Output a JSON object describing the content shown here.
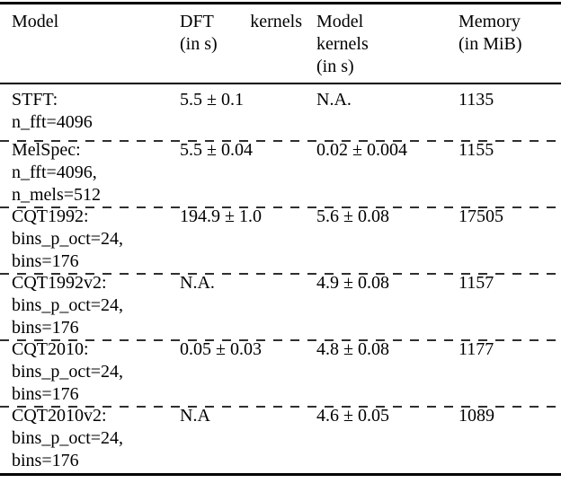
{
  "table": {
    "colors": {
      "text": "#000000",
      "rule": "#000000",
      "dash": "#2f2f2f",
      "background": "#ffffff"
    },
    "headers": [
      {
        "id": "model",
        "lines": [
          "Model"
        ],
        "justify_first": false
      },
      {
        "id": "dft-kernels",
        "lines": [
          "DFT kernels",
          "(in s)"
        ],
        "justify_first": true
      },
      {
        "id": "model-kernels",
        "lines": [
          "Model",
          "kernels",
          "(in s)"
        ],
        "justify_first": false
      },
      {
        "id": "memory",
        "lines": [
          "Memory",
          "(in MiB)"
        ],
        "justify_first": false
      }
    ],
    "rows": [
      {
        "id": "stft",
        "model_lines": [
          "STFT:",
          "n_fft=4096"
        ],
        "dft_kernels": "5.5 ± 0.1",
        "model_kernels": "N.A.",
        "memory": "1135"
      },
      {
        "id": "melspec",
        "model_lines": [
          "MelSpec:",
          "n_fft=4096,",
          "n_mels=512"
        ],
        "dft_kernels": "5.5 ± 0.04",
        "model_kernels": "0.02 ± 0.004",
        "memory": "1155"
      },
      {
        "id": "cqt1992",
        "model_lines": [
          "CQT1992:",
          "bins_p_oct=24,",
          "bins=176"
        ],
        "dft_kernels": "194.9 ± 1.0",
        "model_kernels": "5.6 ± 0.08",
        "memory": "17505"
      },
      {
        "id": "cqt1992v2",
        "model_lines": [
          "CQT1992v2:",
          "bins_p_oct=24,",
          "bins=176"
        ],
        "dft_kernels": "N.A.",
        "model_kernels": "4.9 ± 0.08",
        "memory": "1157"
      },
      {
        "id": "cqt2010",
        "model_lines": [
          "CQT2010:",
          "bins_p_oct=24,",
          "bins=176"
        ],
        "dft_kernels": "0.05 ± 0.03",
        "model_kernels": "4.8 ± 0.08",
        "memory": "1177"
      },
      {
        "id": "cqt2010v2",
        "model_lines": [
          "CQT2010v2:",
          "bins_p_oct=24,",
          "bins=176"
        ],
        "dft_kernels": "N.A",
        "model_kernels": "4.6 ± 0.05",
        "memory": "1089"
      }
    ]
  }
}
